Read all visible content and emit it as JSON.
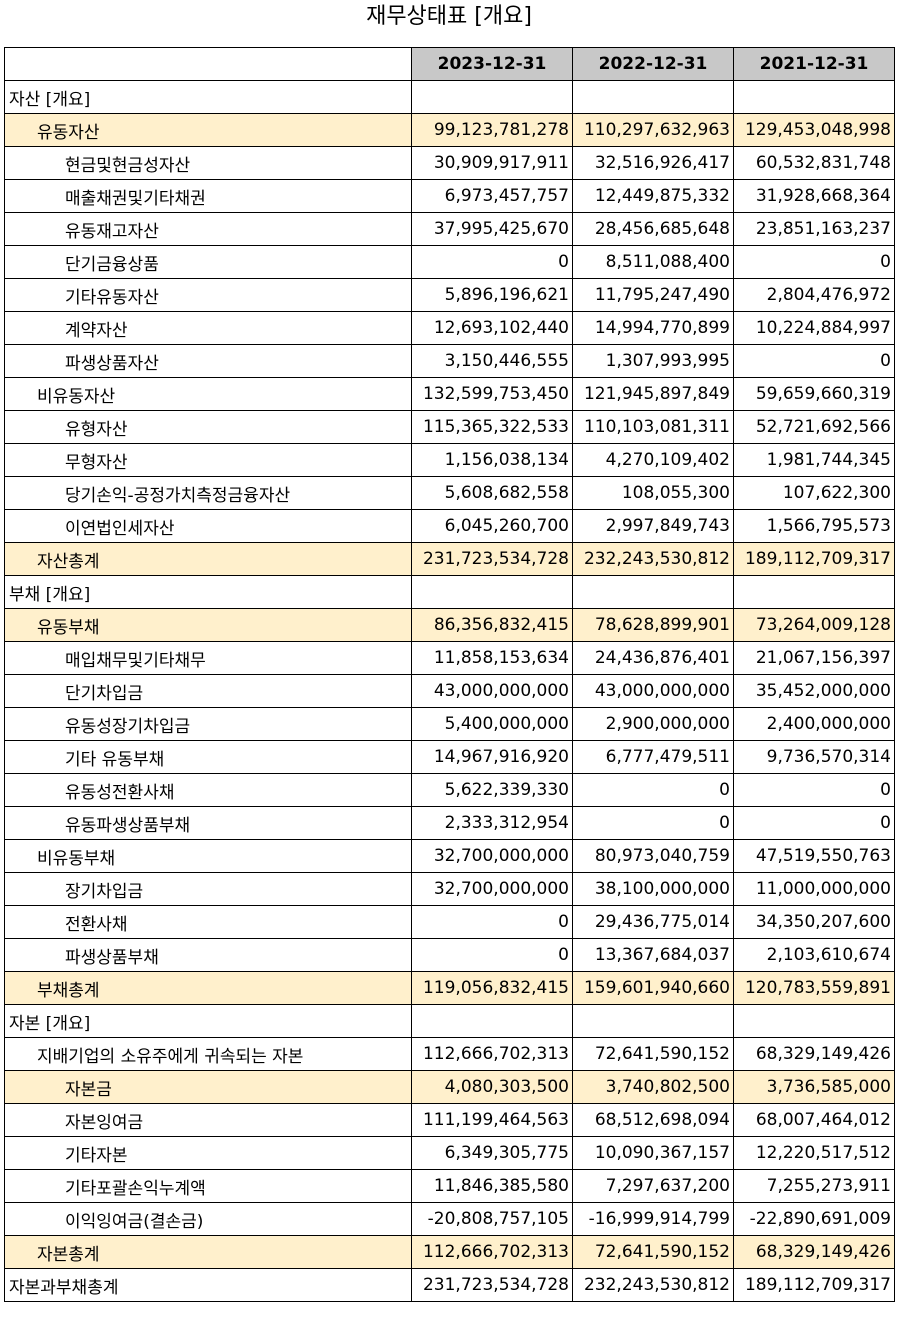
{
  "title": "재무상태표 [개요]",
  "columns": [
    "2023-12-31",
    "2022-12-31",
    "2021-12-31"
  ],
  "rows": [
    {
      "label": "자산 [개요]",
      "level": 0,
      "highlight": false,
      "values": [
        "",
        "",
        ""
      ]
    },
    {
      "label": "유동자산",
      "level": 1,
      "highlight": true,
      "values": [
        "99,123,781,278",
        "110,297,632,963",
        "129,453,048,998"
      ]
    },
    {
      "label": "현금및현금성자산",
      "level": 2,
      "highlight": false,
      "values": [
        "30,909,917,911",
        "32,516,926,417",
        "60,532,831,748"
      ]
    },
    {
      "label": "매출채권및기타채권",
      "level": 2,
      "highlight": false,
      "values": [
        "6,973,457,757",
        "12,449,875,332",
        "31,928,668,364"
      ]
    },
    {
      "label": "유동재고자산",
      "level": 2,
      "highlight": false,
      "values": [
        "37,995,425,670",
        "28,456,685,648",
        "23,851,163,237"
      ]
    },
    {
      "label": "단기금융상품",
      "level": 2,
      "highlight": false,
      "values": [
        "0",
        "8,511,088,400",
        "0"
      ]
    },
    {
      "label": "기타유동자산",
      "level": 2,
      "highlight": false,
      "values": [
        "5,896,196,621",
        "11,795,247,490",
        "2,804,476,972"
      ]
    },
    {
      "label": "계약자산",
      "level": 2,
      "highlight": false,
      "values": [
        "12,693,102,440",
        "14,994,770,899",
        "10,224,884,997"
      ]
    },
    {
      "label": "파생상품자산",
      "level": 2,
      "highlight": false,
      "values": [
        "3,150,446,555",
        "1,307,993,995",
        "0"
      ]
    },
    {
      "label": "비유동자산",
      "level": 1,
      "highlight": false,
      "values": [
        "132,599,753,450",
        "121,945,897,849",
        "59,659,660,319"
      ]
    },
    {
      "label": "유형자산",
      "level": 2,
      "highlight": false,
      "values": [
        "115,365,322,533",
        "110,103,081,311",
        "52,721,692,566"
      ]
    },
    {
      "label": "무형자산",
      "level": 2,
      "highlight": false,
      "values": [
        "1,156,038,134",
        "4,270,109,402",
        "1,981,744,345"
      ]
    },
    {
      "label": "당기손익-공정가치측정금융자산",
      "level": 2,
      "highlight": false,
      "values": [
        "5,608,682,558",
        "108,055,300",
        "107,622,300"
      ]
    },
    {
      "label": "이연법인세자산",
      "level": 2,
      "highlight": false,
      "values": [
        "6,045,260,700",
        "2,997,849,743",
        "1,566,795,573"
      ]
    },
    {
      "label": "자산총계",
      "level": 1,
      "highlight": true,
      "values": [
        "231,723,534,728",
        "232,243,530,812",
        "189,112,709,317"
      ]
    },
    {
      "label": "부채 [개요]",
      "level": 0,
      "highlight": false,
      "values": [
        "",
        "",
        ""
      ]
    },
    {
      "label": "유동부채",
      "level": 1,
      "highlight": true,
      "values": [
        "86,356,832,415",
        "78,628,899,901",
        "73,264,009,128"
      ]
    },
    {
      "label": "매입채무및기타채무",
      "level": 2,
      "highlight": false,
      "values": [
        "11,858,153,634",
        "24,436,876,401",
        "21,067,156,397"
      ]
    },
    {
      "label": "단기차입금",
      "level": 2,
      "highlight": false,
      "values": [
        "43,000,000,000",
        "43,000,000,000",
        "35,452,000,000"
      ]
    },
    {
      "label": "유동성장기차입금",
      "level": 2,
      "highlight": false,
      "values": [
        "5,400,000,000",
        "2,900,000,000",
        "2,400,000,000"
      ]
    },
    {
      "label": "기타 유동부채",
      "level": 2,
      "highlight": false,
      "values": [
        "14,967,916,920",
        "6,777,479,511",
        "9,736,570,314"
      ]
    },
    {
      "label": "유동성전환사채",
      "level": 2,
      "highlight": false,
      "values": [
        "5,622,339,330",
        "0",
        "0"
      ]
    },
    {
      "label": "유동파생상품부채",
      "level": 2,
      "highlight": false,
      "values": [
        "2,333,312,954",
        "0",
        "0"
      ]
    },
    {
      "label": "비유동부채",
      "level": 1,
      "highlight": false,
      "values": [
        "32,700,000,000",
        "80,973,040,759",
        "47,519,550,763"
      ]
    },
    {
      "label": "장기차입금",
      "level": 2,
      "highlight": false,
      "values": [
        "32,700,000,000",
        "38,100,000,000",
        "11,000,000,000"
      ]
    },
    {
      "label": "전환사채",
      "level": 2,
      "highlight": false,
      "values": [
        "0",
        "29,436,775,014",
        "34,350,207,600"
      ]
    },
    {
      "label": "파생상품부채",
      "level": 2,
      "highlight": false,
      "values": [
        "0",
        "13,367,684,037",
        "2,103,610,674"
      ]
    },
    {
      "label": "부채총계",
      "level": 1,
      "highlight": true,
      "values": [
        "119,056,832,415",
        "159,601,940,660",
        "120,783,559,891"
      ]
    },
    {
      "label": "자본 [개요]",
      "level": 0,
      "highlight": false,
      "values": [
        "",
        "",
        ""
      ]
    },
    {
      "label": "지배기업의 소유주에게 귀속되는 자본",
      "level": 1,
      "highlight": false,
      "values": [
        "112,666,702,313",
        "72,641,590,152",
        "68,329,149,426"
      ]
    },
    {
      "label": "자본금",
      "level": 2,
      "highlight": true,
      "values": [
        "4,080,303,500",
        "3,740,802,500",
        "3,736,585,000"
      ]
    },
    {
      "label": "자본잉여금",
      "level": 2,
      "highlight": false,
      "values": [
        "111,199,464,563",
        "68,512,698,094",
        "68,007,464,012"
      ]
    },
    {
      "label": "기타자본",
      "level": 2,
      "highlight": false,
      "values": [
        "6,349,305,775",
        "10,090,367,157",
        "12,220,517,512"
      ]
    },
    {
      "label": "기타포괄손익누계액",
      "level": 2,
      "highlight": false,
      "values": [
        "11,846,385,580",
        "7,297,637,200",
        "7,255,273,911"
      ]
    },
    {
      "label": "이익잉여금(결손금)",
      "level": 2,
      "highlight": false,
      "values": [
        "-20,808,757,105",
        "-16,999,914,799",
        "-22,890,691,009"
      ]
    },
    {
      "label": "자본총계",
      "level": 1,
      "highlight": true,
      "values": [
        "112,666,702,313",
        "72,641,590,152",
        "68,329,149,426"
      ]
    },
    {
      "label": "자본과부채총계",
      "level": 0,
      "highlight": false,
      "values": [
        "231,723,534,728",
        "232,243,530,812",
        "189,112,709,317"
      ]
    }
  ]
}
